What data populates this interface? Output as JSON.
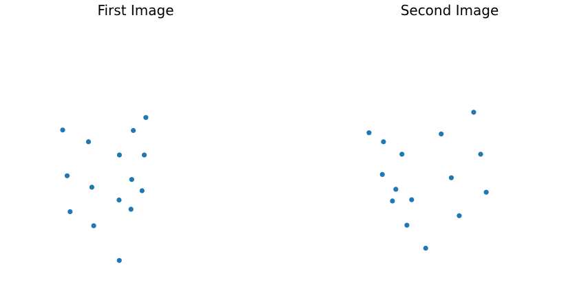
{
  "chart_data": [
    {
      "type": "scatter",
      "title": "First Image",
      "axes": "off",
      "grid": false,
      "xlim": [
        0,
        100
      ],
      "ylim": [
        0,
        100
      ],
      "color": "#1f77b4",
      "points": [
        {
          "x": 4.8,
          "y": 57.9
        },
        {
          "x": 21.1,
          "y": 53.2
        },
        {
          "x": 7.6,
          "y": 39.6
        },
        {
          "x": 23.2,
          "y": 35.0
        },
        {
          "x": 9.5,
          "y": 25.2
        },
        {
          "x": 24.4,
          "y": 19.6
        },
        {
          "x": 40.6,
          "y": 47.9
        },
        {
          "x": 40.4,
          "y": 29.9
        },
        {
          "x": 40.5,
          "y": 5.7
        },
        {
          "x": 49.4,
          "y": 57.7
        },
        {
          "x": 48.4,
          "y": 38.1
        },
        {
          "x": 47.9,
          "y": 26.2
        },
        {
          "x": 57.3,
          "y": 62.9
        },
        {
          "x": 56.3,
          "y": 47.9
        },
        {
          "x": 54.9,
          "y": 33.6
        }
      ]
    },
    {
      "type": "scatter",
      "title": "Second Image",
      "axes": "off",
      "grid": false,
      "xlim": [
        0,
        100
      ],
      "ylim": [
        0,
        100
      ],
      "color": "#1f77b4",
      "points": [
        {
          "x": 6.9,
          "y": 56.8
        },
        {
          "x": 14.2,
          "y": 53.2
        },
        {
          "x": 23.5,
          "y": 48.2
        },
        {
          "x": 13.6,
          "y": 40.1
        },
        {
          "x": 20.4,
          "y": 34.2
        },
        {
          "x": 18.7,
          "y": 29.5
        },
        {
          "x": 28.4,
          "y": 30.0
        },
        {
          "x": 26.0,
          "y": 19.8
        },
        {
          "x": 35.5,
          "y": 10.6
        },
        {
          "x": 43.3,
          "y": 56.3
        },
        {
          "x": 48.4,
          "y": 38.8
        },
        {
          "x": 52.4,
          "y": 23.6
        },
        {
          "x": 59.7,
          "y": 65.0
        },
        {
          "x": 63.2,
          "y": 48.2
        },
        {
          "x": 66.0,
          "y": 33.0
        }
      ]
    }
  ]
}
